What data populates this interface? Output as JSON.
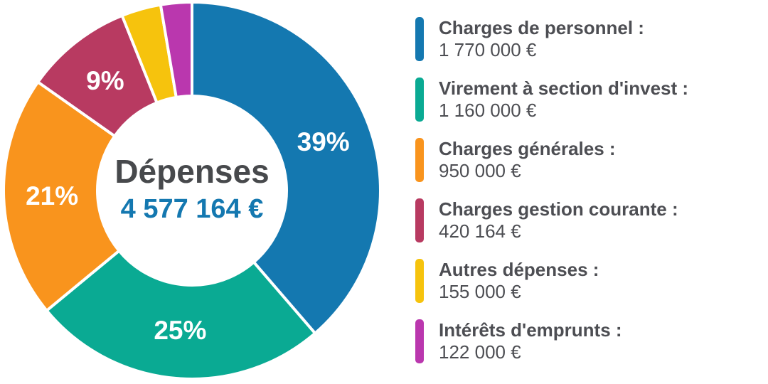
{
  "chart_data": {
    "type": "pie",
    "subtype": "donut",
    "center_title": "Dépenses",
    "center_value": "4 577 164 €",
    "total": 4577164,
    "legend_position": "right",
    "start_angle_deg": 0,
    "direction": "clockwise",
    "colors": {
      "center_title_color": "#47494c",
      "center_value_color": "#1478b0",
      "pct_label_color": "#ffffff",
      "legend_text_color": "#4d4e53",
      "separator_color": "#ffffff"
    },
    "segments": [
      {
        "label": "Charges de personnel :",
        "value": 1770000,
        "value_text": "1 770 000 €",
        "pct": 38.7,
        "pct_label": "39%",
        "color": "#1478b0"
      },
      {
        "label": "Virement à section d'invest :",
        "value": 1160000,
        "value_text": "1 160 000 €",
        "pct": 25.3,
        "pct_label": "25%",
        "color": "#0aaa93"
      },
      {
        "label": "Charges générales :",
        "value": 950000,
        "value_text": "950 000 €",
        "pct": 20.8,
        "pct_label": "21%",
        "color": "#f9941d"
      },
      {
        "label": "Charges gestion courante :",
        "value": 420164,
        "value_text": "420 164 €",
        "pct": 9.2,
        "pct_label": "9%",
        "color": "#b83a61"
      },
      {
        "label": "Autres dépenses :",
        "value": 155000,
        "value_text": "155 000 €",
        "pct": 3.4,
        "pct_label": "",
        "color": "#f6c30d"
      },
      {
        "label": "Intérêts d'emprunts :",
        "value": 122000,
        "value_text": "122 000 €",
        "pct": 2.7,
        "pct_label": "",
        "color": "#ba37ae"
      }
    ]
  }
}
